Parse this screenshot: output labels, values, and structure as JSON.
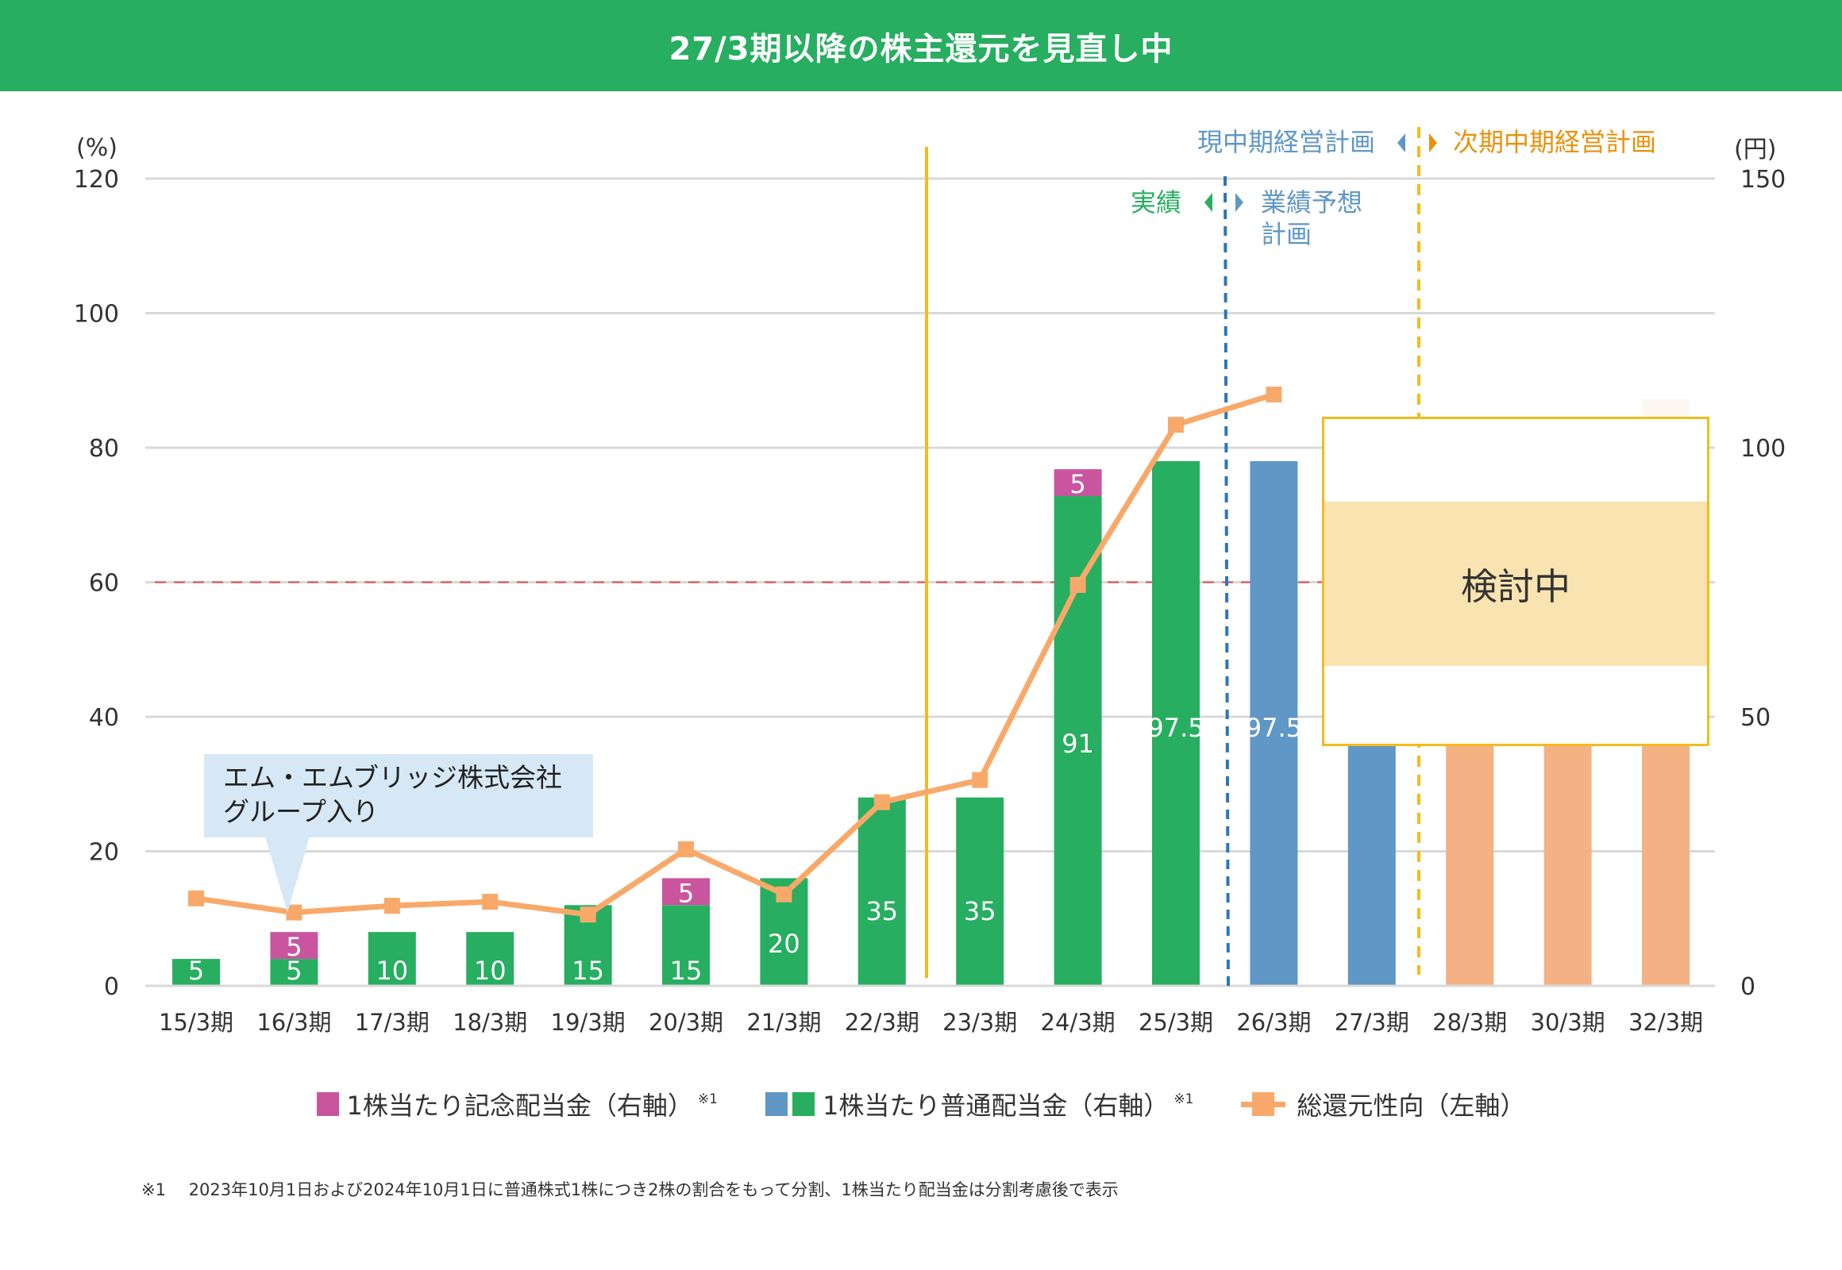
{
  "header": {
    "title": "27/3期以降の株主還元を見直し中"
  },
  "chart_data": {
    "type": "bar",
    "title": "27/3期以降の株主還元を見直し中",
    "categories": [
      "15/3期",
      "16/3期",
      "17/3期",
      "18/3期",
      "19/3期",
      "20/3期",
      "21/3期",
      "22/3期",
      "23/3期",
      "24/3期",
      "25/3期",
      "26/3期",
      "27/3期",
      "28/3期",
      "30/3期",
      "32/3期"
    ],
    "left_axis": {
      "label": "(%)",
      "ylim": [
        0,
        120
      ],
      "ticks": [
        0,
        20,
        40,
        60,
        80,
        100,
        120
      ]
    },
    "right_axis": {
      "label": "(円)",
      "ylim": [
        0,
        150
      ],
      "ticks": [
        0,
        50,
        100,
        150
      ]
    },
    "grid": true,
    "reference_line": {
      "axis": "left",
      "value": 60,
      "style": "dashed",
      "color": "#e8504f"
    },
    "series": [
      {
        "name": "1株当たり普通配当金（右軸）",
        "axis": "right",
        "kind": "bar",
        "values": [
          5,
          5,
          10,
          10,
          15,
          15,
          20,
          35,
          35,
          91,
          97.5,
          97.5,
          null,
          null,
          null,
          null
        ],
        "labels": [
          "5",
          "5",
          "10",
          "10",
          "15",
          "15",
          "20",
          "35",
          "35",
          "91",
          "97.5",
          "97.5",
          "",
          "",
          "",
          ""
        ],
        "colors": [
          "#27ae60",
          "#27ae60",
          "#27ae60",
          "#27ae60",
          "#27ae60",
          "#27ae60",
          "#27ae60",
          "#27ae60",
          "#27ae60",
          "#27ae60",
          "#27ae60",
          "#5f97c6",
          "#5f97c6",
          "#f4b183",
          "#f4b183",
          "#f4b183"
        ]
      },
      {
        "name": "1株当たり記念配当金（右軸）",
        "axis": "right",
        "kind": "stacked-bar",
        "values": [
          0,
          5,
          0,
          0,
          0,
          5,
          0,
          0,
          0,
          5,
          0,
          0,
          0,
          0,
          0,
          0
        ],
        "labels": [
          "",
          "5",
          "",
          "",
          "",
          "5",
          "",
          "",
          "",
          "5",
          "",
          "",
          "",
          "",
          "",
          ""
        ],
        "color": "#c9559f"
      },
      {
        "name": "総還元性向（左軸）",
        "axis": "left",
        "kind": "line",
        "values": [
          13.0,
          10.9,
          11.9,
          12.5,
          10.6,
          20.3,
          13.6,
          27.3,
          30.6,
          59.6,
          83.4,
          87.9,
          null,
          null,
          null,
          null
        ],
        "color": "#f8a96a"
      }
    ],
    "annotations": {
      "callout": {
        "text_line1": "エム・エムブリッジ株式会社",
        "text_line2": "グループ入り",
        "category": "16/3期"
      },
      "under_review": {
        "text": "検討中",
        "categories": [
          "27/3期",
          "28/3期",
          "30/3期",
          "32/3期"
        ]
      },
      "actual_label": "実績",
      "forecast_label_line1": "業績予想",
      "forecast_label_line2": "計画",
      "current_plan_label": "現中期経営計画",
      "next_plan_label": "次期中期経営計画"
    },
    "legend": {
      "placement": "bottom",
      "items": [
        {
          "label": "1株当たり記念配当金（右軸）",
          "note": "※1",
          "colors": [
            "#c9559f"
          ]
        },
        {
          "label": "1株当たり普通配当金（右軸）",
          "note": "※1",
          "colors": [
            "#5f97c6",
            "#27ae60"
          ]
        },
        {
          "label": "総還元性向（左軸）",
          "note": "",
          "colors": [
            "#f8a96a"
          ]
        }
      ]
    }
  },
  "footnote": {
    "mark": "※1",
    "text": "2023年10月1日および2024年10月1日に普通株式1株につき2株の割合をもって分割、1株当たり配当金は分割考慮後で表示"
  },
  "colors": {
    "header_green": "#27ae60",
    "actual_green": "#27ae60",
    "forecast_blue": "#5f97c6",
    "plan_orange": "#f4b183",
    "commemorative_magenta": "#c9559f",
    "payout_line": "#f8a96a",
    "next_plan_label": "#e8920c",
    "review_band": "#f9e3b0",
    "review_border": "#f4bc1a"
  }
}
